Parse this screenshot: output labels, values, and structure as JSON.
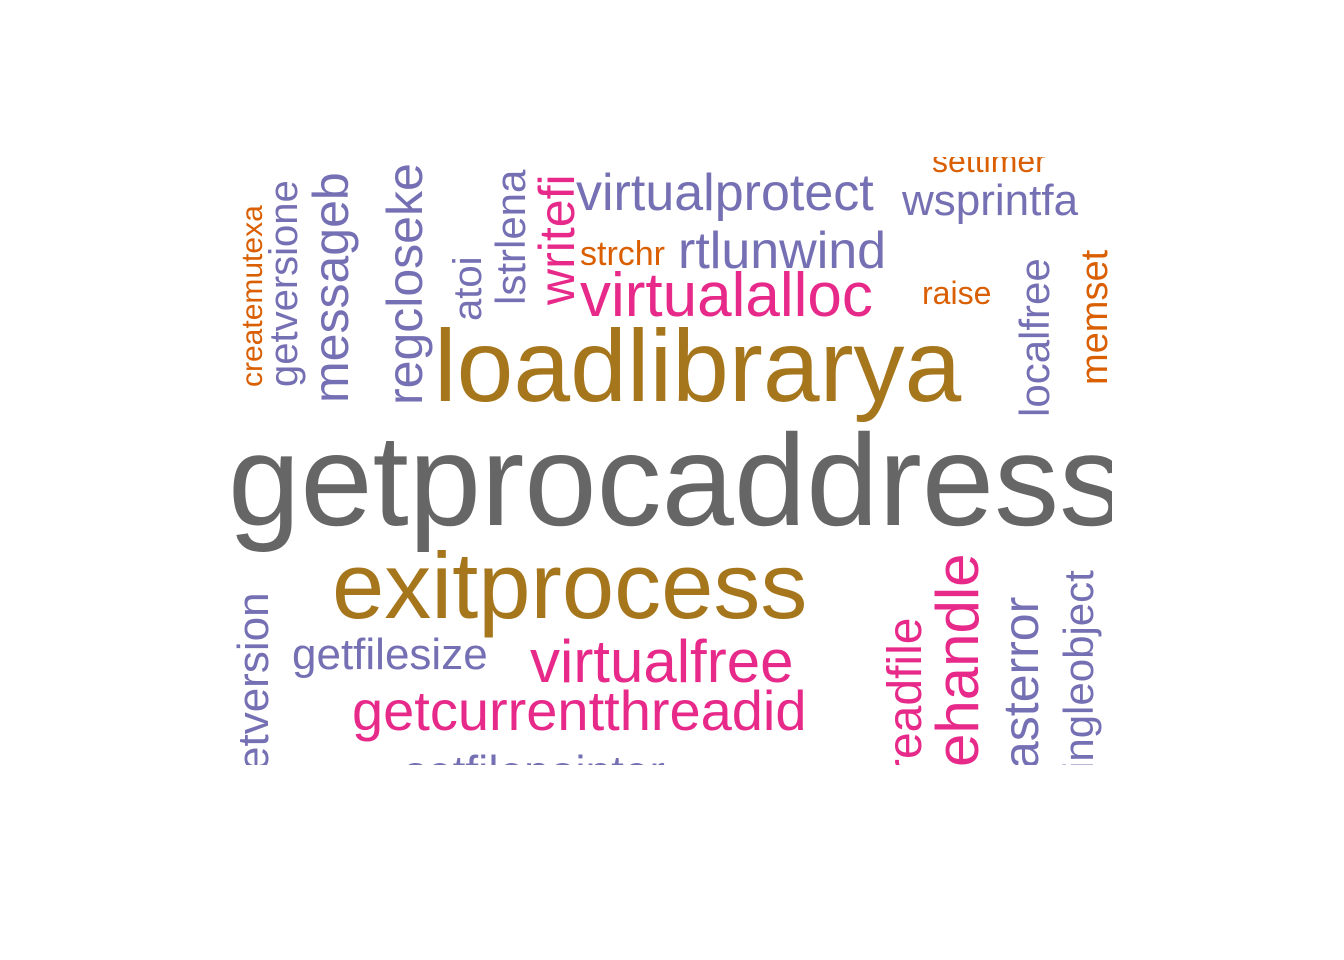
{
  "colors": {
    "gray": "#666666",
    "gold": "#A6761D",
    "pink": "#E7298A",
    "purple": "#7570B3",
    "orange": "#D95F02"
  },
  "words": {
    "getprocaddress": "getprocaddress",
    "loadlibrarya": "loadlibrarya",
    "exitprocess": "exitprocess",
    "virtualalloc": "virtualalloc",
    "virtualfree": "virtualfree",
    "getcurrentthreadid": "getcurrentthreadid",
    "virtualprotect": "virtualprotect",
    "rtlunwind": "rtlunwind",
    "wsprintfa": "wsprintfa",
    "getfilesize": "getfilesize",
    "settimer": "settimer",
    "strchr": "strchr",
    "raise": "raise",
    "memset": "memset",
    "localfree": "localfree",
    "createmutexa": "createmutexa",
    "getversione": "getversione",
    "messageb": "messageb",
    "regcloseke": "regcloseke",
    "atoi": "atoi",
    "lstrlena": "lstrlena",
    "writefi": "writefi",
    "etversion": "etversion",
    "readfile": "readfile",
    "ehandle": "ehandle",
    "asterror": "asterror",
    "ingleobject": "ingleobject",
    "setfilepointer": "setfilepointer"
  }
}
